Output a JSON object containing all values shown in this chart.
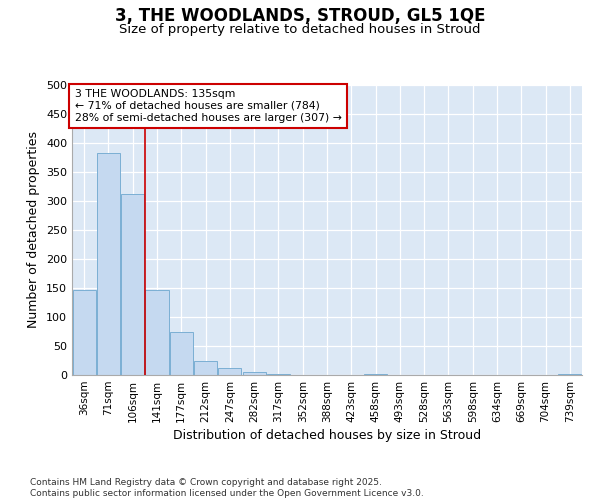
{
  "title": "3, THE WOODLANDS, STROUD, GL5 1QE",
  "subtitle": "Size of property relative to detached houses in Stroud",
  "xlabel": "Distribution of detached houses by size in Stroud",
  "ylabel": "Number of detached properties",
  "bar_color": "#c5d9f0",
  "bar_edge_color": "#7bafd4",
  "background_color": "#dce8f5",
  "grid_color": "#ffffff",
  "categories": [
    "36sqm",
    "71sqm",
    "106sqm",
    "141sqm",
    "177sqm",
    "212sqm",
    "247sqm",
    "282sqm",
    "317sqm",
    "352sqm",
    "388sqm",
    "423sqm",
    "458sqm",
    "493sqm",
    "528sqm",
    "563sqm",
    "598sqm",
    "634sqm",
    "669sqm",
    "704sqm",
    "739sqm"
  ],
  "values": [
    147,
    383,
    312,
    147,
    75,
    25,
    12,
    5,
    1,
    0,
    0,
    0,
    2,
    0,
    0,
    0,
    0,
    0,
    0,
    0,
    2
  ],
  "vline_x": 2.5,
  "vline_color": "#cc0000",
  "annotation_line1": "3 THE WOODLANDS: 135sqm",
  "annotation_line2": "← 71% of detached houses are smaller (784)",
  "annotation_line3": "28% of semi-detached houses are larger (307) →",
  "annotation_box_facecolor": "#ffffff",
  "annotation_box_edgecolor": "#cc0000",
  "ylim": [
    0,
    500
  ],
  "yticks": [
    0,
    50,
    100,
    150,
    200,
    250,
    300,
    350,
    400,
    450,
    500
  ],
  "footer": "Contains HM Land Registry data © Crown copyright and database right 2025.\nContains public sector information licensed under the Open Government Licence v3.0.",
  "fig_bg_color": "#ffffff"
}
